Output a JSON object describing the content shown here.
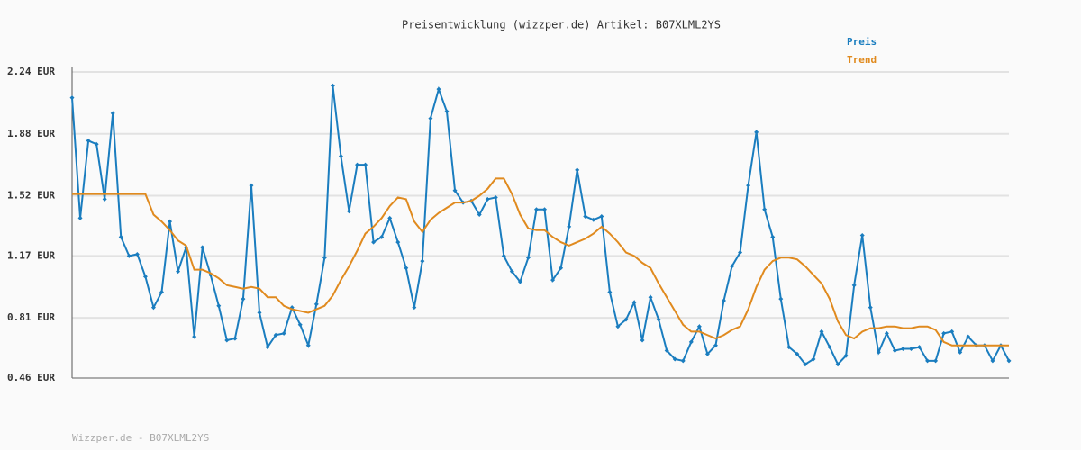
{
  "chart_data": {
    "type": "line",
    "title": "Preisentwicklung (wizzper.de) Artikel: B07XLML2YS",
    "footer": "Wizzper.de - B07XLML2YS",
    "ylim": [
      0.46,
      2.24
    ],
    "yticks": [
      {
        "value": 0.46,
        "label": "0.46 EUR"
      },
      {
        "value": 0.81,
        "label": "0.81 EUR"
      },
      {
        "value": 1.17,
        "label": "1.17 EUR"
      },
      {
        "value": 1.52,
        "label": "1.52 EUR"
      },
      {
        "value": 1.88,
        "label": "1.88 EUR"
      },
      {
        "value": 2.24,
        "label": "2.24 EUR"
      }
    ],
    "grid": true,
    "series": [
      {
        "name": "Preis",
        "color": "#1a7dbf",
        "markers": true,
        "values": [
          2.09,
          1.39,
          1.84,
          1.82,
          1.5,
          2.0,
          1.28,
          1.17,
          1.18,
          1.05,
          0.87,
          0.96,
          1.37,
          1.08,
          1.22,
          0.7,
          1.22,
          1.06,
          0.88,
          0.68,
          0.69,
          0.92,
          1.58,
          0.84,
          0.64,
          0.71,
          0.72,
          0.87,
          0.77,
          0.65,
          0.89,
          1.16,
          2.16,
          1.75,
          1.43,
          1.7,
          1.7,
          1.25,
          1.28,
          1.39,
          1.25,
          1.1,
          0.87,
          1.14,
          1.97,
          2.14,
          2.01,
          1.55,
          1.48,
          1.49,
          1.41,
          1.5,
          1.51,
          1.17,
          1.08,
          1.02,
          1.16,
          1.44,
          1.44,
          1.03,
          1.1,
          1.34,
          1.67,
          1.4,
          1.38,
          1.4,
          0.96,
          0.76,
          0.8,
          0.9,
          0.68,
          0.93,
          0.8,
          0.62,
          0.57,
          0.56,
          0.67,
          0.76,
          0.6,
          0.65,
          0.91,
          1.11,
          1.19,
          1.58,
          1.89,
          1.44,
          1.28,
          0.92,
          0.64,
          0.6,
          0.54,
          0.57,
          0.73,
          0.64,
          0.54,
          0.59,
          1.0,
          1.29,
          0.87,
          0.61,
          0.72,
          0.62,
          0.63,
          0.63,
          0.64,
          0.56,
          0.56,
          0.72,
          0.73,
          0.61,
          0.7,
          0.65,
          0.65,
          0.56,
          0.65,
          0.56
        ]
      },
      {
        "name": "Trend",
        "color": "#e08a1e",
        "markers": false,
        "values": [
          1.53,
          1.53,
          1.53,
          1.53,
          1.53,
          1.53,
          1.53,
          1.53,
          1.53,
          1.53,
          1.41,
          1.37,
          1.32,
          1.26,
          1.23,
          1.09,
          1.09,
          1.07,
          1.04,
          1.0,
          0.99,
          0.98,
          0.99,
          0.98,
          0.93,
          0.93,
          0.88,
          0.86,
          0.85,
          0.84,
          0.86,
          0.88,
          0.94,
          1.03,
          1.11,
          1.2,
          1.3,
          1.34,
          1.39,
          1.46,
          1.51,
          1.5,
          1.37,
          1.31,
          1.38,
          1.42,
          1.45,
          1.48,
          1.48,
          1.49,
          1.52,
          1.56,
          1.62,
          1.62,
          1.53,
          1.41,
          1.33,
          1.32,
          1.32,
          1.28,
          1.25,
          1.23,
          1.25,
          1.27,
          1.3,
          1.34,
          1.3,
          1.25,
          1.19,
          1.17,
          1.13,
          1.1,
          1.01,
          0.93,
          0.85,
          0.77,
          0.73,
          0.73,
          0.71,
          0.69,
          0.71,
          0.74,
          0.76,
          0.86,
          0.99,
          1.09,
          1.14,
          1.16,
          1.16,
          1.15,
          1.11,
          1.06,
          1.01,
          0.92,
          0.79,
          0.71,
          0.69,
          0.73,
          0.75,
          0.75,
          0.76,
          0.76,
          0.75,
          0.75,
          0.76,
          0.76,
          0.74,
          0.67,
          0.65,
          0.65,
          0.65,
          0.65,
          0.65,
          0.65,
          0.65,
          0.65
        ]
      }
    ]
  }
}
